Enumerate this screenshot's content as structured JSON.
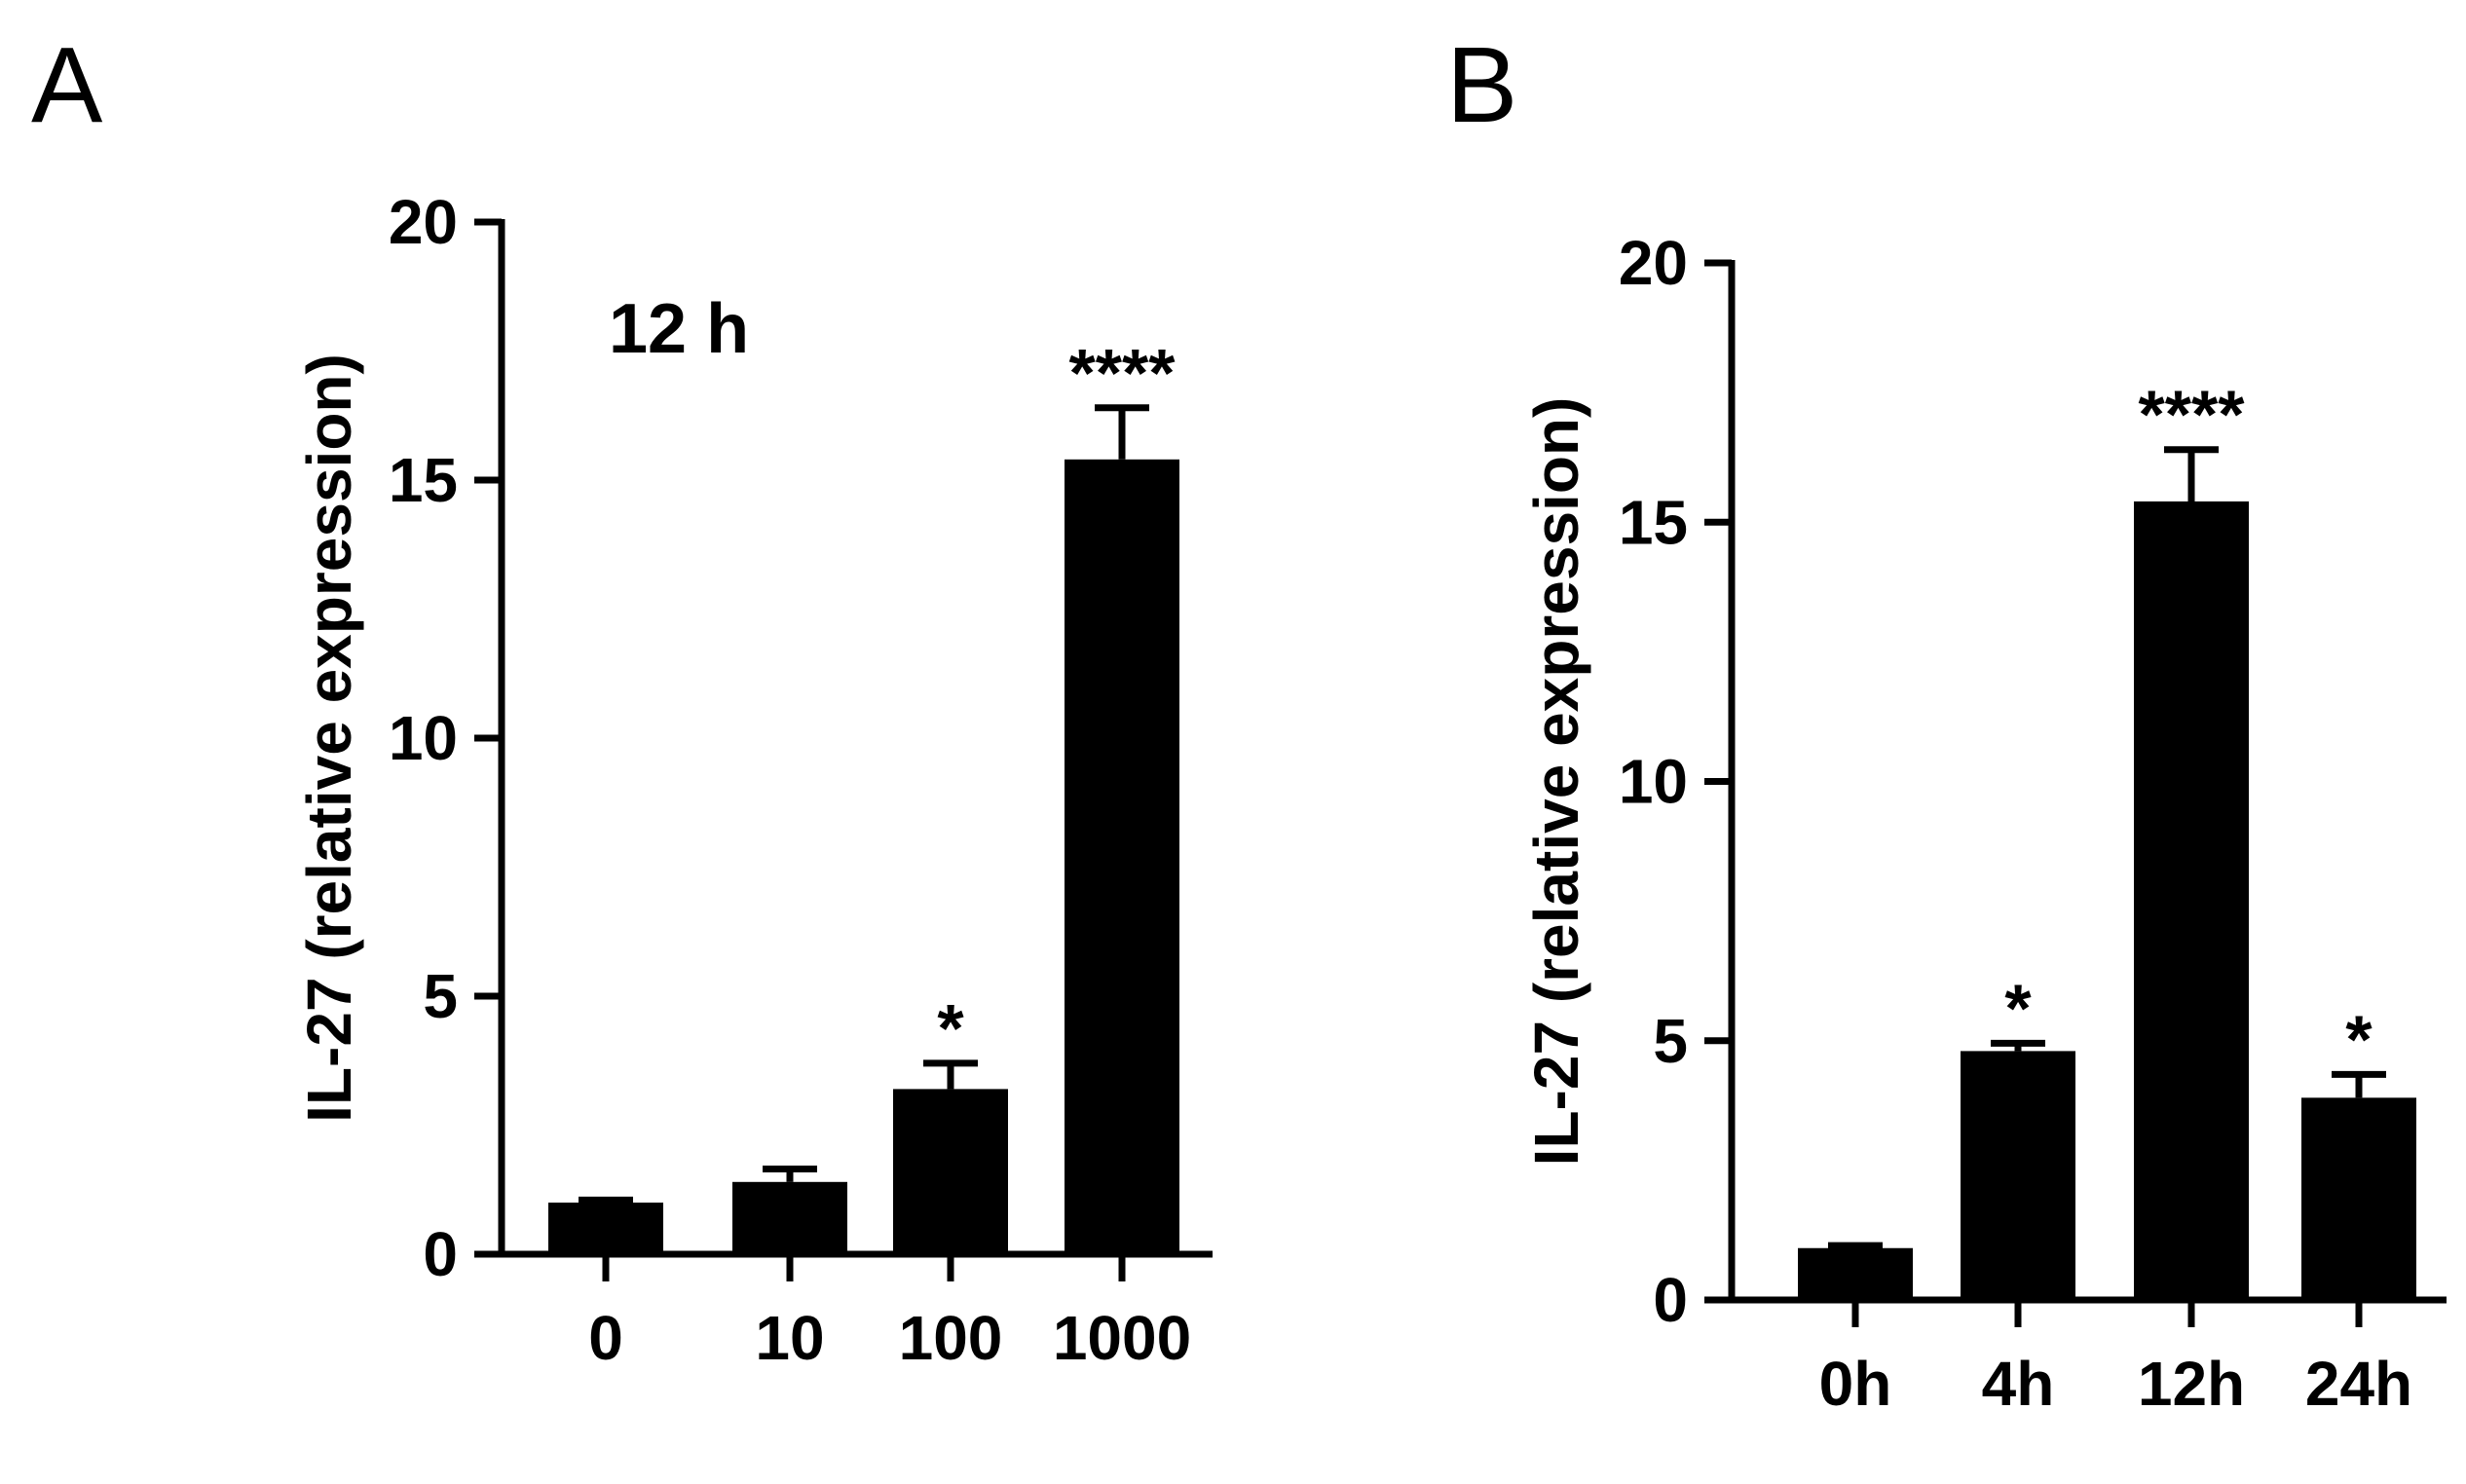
{
  "figure": {
    "panel_letters": [
      "A",
      "B"
    ]
  },
  "chart_data": [
    {
      "type": "bar",
      "panel": "A",
      "annotation": "12 h",
      "ylabel": "IL-27 (relative expression)",
      "xlabel": "",
      "categories": [
        "0",
        "10",
        "100",
        "1000"
      ],
      "values": [
        1.0,
        1.4,
        3.2,
        15.4
      ],
      "errors": [
        0.05,
        0.25,
        0.5,
        1.0
      ],
      "significance": [
        "",
        "",
        "*",
        "****"
      ],
      "ylim": [
        0,
        20
      ],
      "yticks": [
        0,
        5,
        10,
        15,
        20
      ],
      "grid": false,
      "bar_color": "#000000"
    },
    {
      "type": "bar",
      "panel": "B",
      "ylabel": "IL-27 (relative expression)",
      "xlabel": "",
      "categories": [
        "0h",
        "4h",
        "12h",
        "24h"
      ],
      "values": [
        1.0,
        4.8,
        15.4,
        3.9
      ],
      "errors": [
        0.05,
        0.15,
        1.0,
        0.45
      ],
      "significance": [
        "",
        "*",
        "****",
        "*"
      ],
      "ylim": [
        0,
        20
      ],
      "yticks": [
        0,
        5,
        10,
        15,
        20
      ],
      "grid": false,
      "bar_color": "#000000"
    }
  ]
}
